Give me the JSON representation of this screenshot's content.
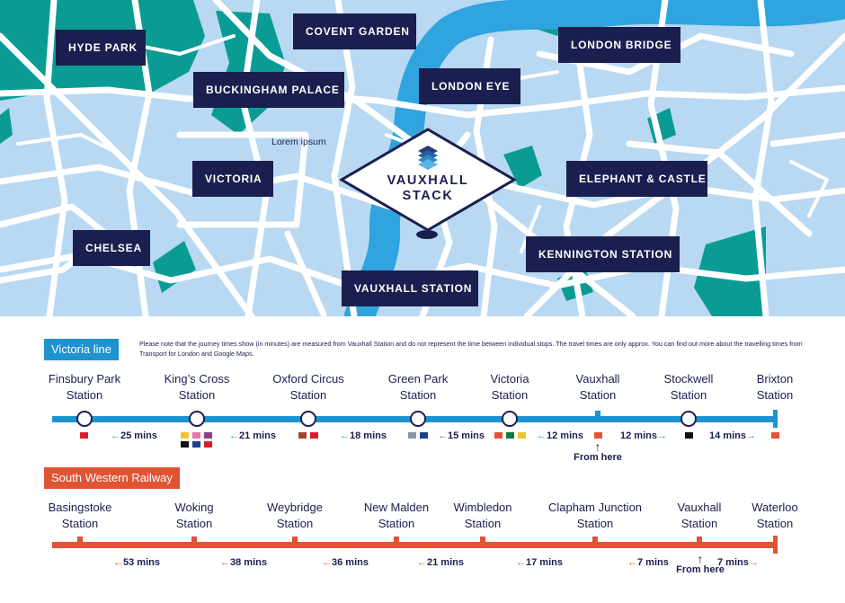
{
  "map": {
    "labels": [
      {
        "id": "hyde-park",
        "text": "HYDE PARK"
      },
      {
        "id": "covent-garden",
        "text": "COVENT GARDEN"
      },
      {
        "id": "london-bridge",
        "text": "LONDON BRIDGE"
      },
      {
        "id": "buckingham-palace",
        "text": "BUCKINGHAM PALACE"
      },
      {
        "id": "london-eye",
        "text": "LONDON EYE"
      },
      {
        "id": "victoria",
        "text": "VICTORIA"
      },
      {
        "id": "elephant-castle",
        "text": "ELEPHANT & CASTLE"
      },
      {
        "id": "chelsea",
        "text": "CHELSEA"
      },
      {
        "id": "kennington-station",
        "text": "KENNINGTON STATION"
      },
      {
        "id": "vauxhall-station",
        "text": "VAUXHALL STATION"
      }
    ],
    "lorem": "Lorem ipsum",
    "logo_line1": "VAUXHALL",
    "logo_line2": "STACK",
    "colors": {
      "water": "#2fa4de",
      "land": "#b9d8f2",
      "park": "#0a9c94",
      "road": "#ffffff",
      "navy": "#1a1f4f"
    }
  },
  "victoria_line": {
    "name": "Victoria line",
    "color": "#1d93cf",
    "note": "Please note that the journey times show (in minutes) are measured from Vauxhall Station and do not represent the time between individual stops. The travel times are only approx. You can find out more about the travelling times from Transport for London and Google Maps.",
    "stations": [
      {
        "line1": "Finsbury Park",
        "line2": "Station"
      },
      {
        "line1": "King’s Cross",
        "line2": "Station"
      },
      {
        "line1": "Oxford Circus",
        "line2": "Station"
      },
      {
        "line1": "Green Park",
        "line2": "Station"
      },
      {
        "line1": "Victoria",
        "line2": "Station"
      },
      {
        "line1": "Vauxhall",
        "line2": "Station"
      },
      {
        "line1": "Stockwell",
        "line2": "Station"
      },
      {
        "line1": "Brixton",
        "line2": "Station"
      }
    ],
    "times": [
      "25 mins",
      "21 mins",
      "18 mins",
      "15 mins",
      "12 mins",
      "12 mins",
      "14 mins"
    ],
    "from_here": "From here"
  },
  "swr": {
    "name": "South Western Railway",
    "color": "#e15335",
    "stations": [
      {
        "line1": "Basingstoke",
        "line2": "Station"
      },
      {
        "line1": "Woking",
        "line2": "Station"
      },
      {
        "line1": "Weybridge",
        "line2": "Station"
      },
      {
        "line1": "New Malden",
        "line2": "Station"
      },
      {
        "line1": "Wimbledon",
        "line2": "Station"
      },
      {
        "line1": "Clapham Junction",
        "line2": "Station"
      },
      {
        "line1": "Vauxhall",
        "line2": "Station"
      },
      {
        "line1": "Waterloo",
        "line2": "Station"
      }
    ],
    "times": [
      "53 mins",
      "38 mins",
      "36 mins",
      "21 mins",
      "17 mins",
      "7 mins",
      "7 mins"
    ],
    "from_here": "From here"
  }
}
